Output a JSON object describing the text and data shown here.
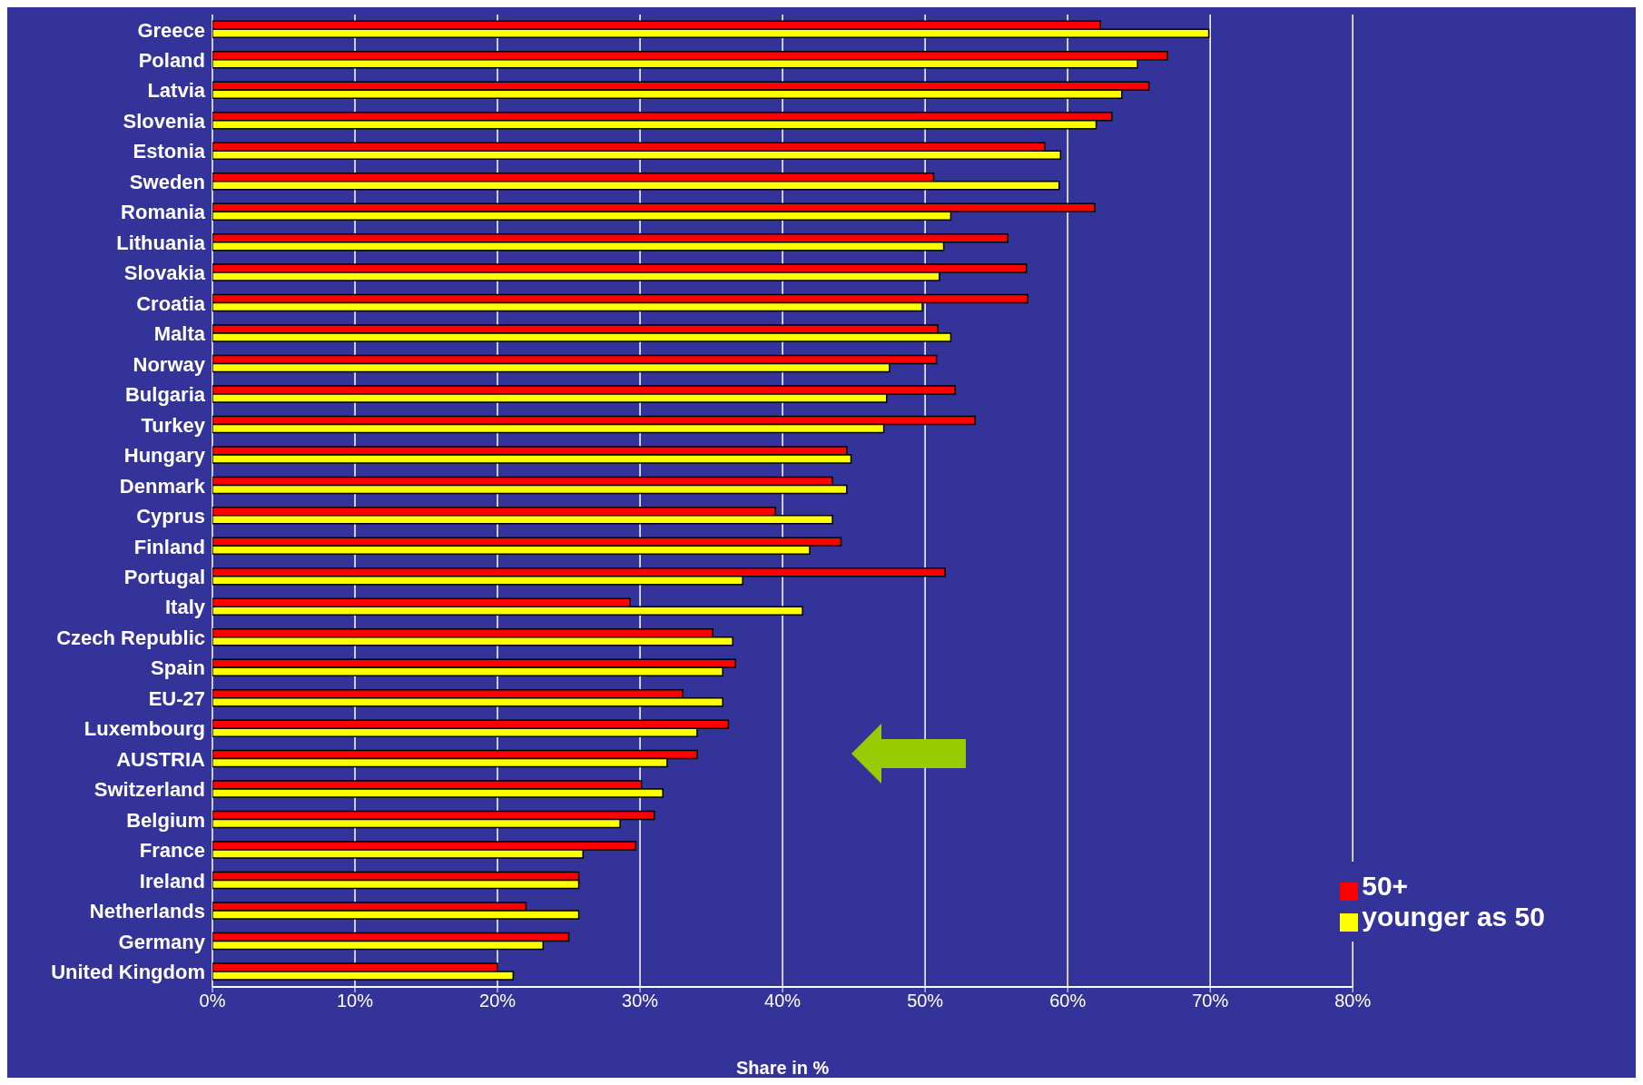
{
  "chart_data": {
    "type": "bar",
    "orientation": "horizontal",
    "xlabel": "Share in %",
    "categories": [
      "Greece",
      "Poland",
      "Latvia",
      "Slovenia",
      "Estonia",
      "Sweden",
      "Romania",
      "Lithuania",
      "Slovakia",
      "Croatia",
      "Malta",
      "Norway",
      "Bulgaria",
      "Turkey",
      "Hungary",
      "Denmark",
      "Cyprus",
      "Finland",
      "Portugal",
      "Italy",
      "Czech Republic",
      "Spain",
      "EU-27",
      "Luxembourg",
      "AUSTRIA",
      "Switzerland",
      "Belgium",
      "France",
      "Ireland",
      "Netherlands",
      "Germany",
      "United Kingdom"
    ],
    "series": [
      {
        "name": "50+",
        "color": "#ff0000",
        "values": [
          62.3,
          67.0,
          65.7,
          63.1,
          58.4,
          50.6,
          61.9,
          55.8,
          57.1,
          57.2,
          50.9,
          50.8,
          52.1,
          53.5,
          44.5,
          43.5,
          39.5,
          44.1,
          51.4,
          29.3,
          35.1,
          36.7,
          33.0,
          36.2,
          34.0,
          30.1,
          31.0,
          29.7,
          25.7,
          22.0,
          25.0,
          20.0
        ]
      },
      {
        "name": "younger as 50",
        "color": "#ffff00",
        "values": [
          69.9,
          64.9,
          63.8,
          62.0,
          59.5,
          59.4,
          51.8,
          51.3,
          51.0,
          49.8,
          51.8,
          47.5,
          47.3,
          47.1,
          44.8,
          44.5,
          43.5,
          41.9,
          37.2,
          41.4,
          36.5,
          35.8,
          35.8,
          34.0,
          31.9,
          31.6,
          28.6,
          26.0,
          25.7,
          25.7,
          23.2,
          21.1
        ]
      }
    ],
    "xlim": [
      0,
      80
    ],
    "xticks": [
      {
        "value": 0,
        "label": "0%"
      },
      {
        "value": 10,
        "label": "10%"
      },
      {
        "value": 20,
        "label": "20%"
      },
      {
        "value": 30,
        "label": "30%"
      },
      {
        "value": 40,
        "label": "40%"
      },
      {
        "value": 50,
        "label": "50%"
      },
      {
        "value": 60,
        "label": "60%"
      },
      {
        "value": 70,
        "label": "70%"
      },
      {
        "value": 80,
        "label": "80%"
      }
    ],
    "grid": "x",
    "legend": "bottom right"
  }
}
